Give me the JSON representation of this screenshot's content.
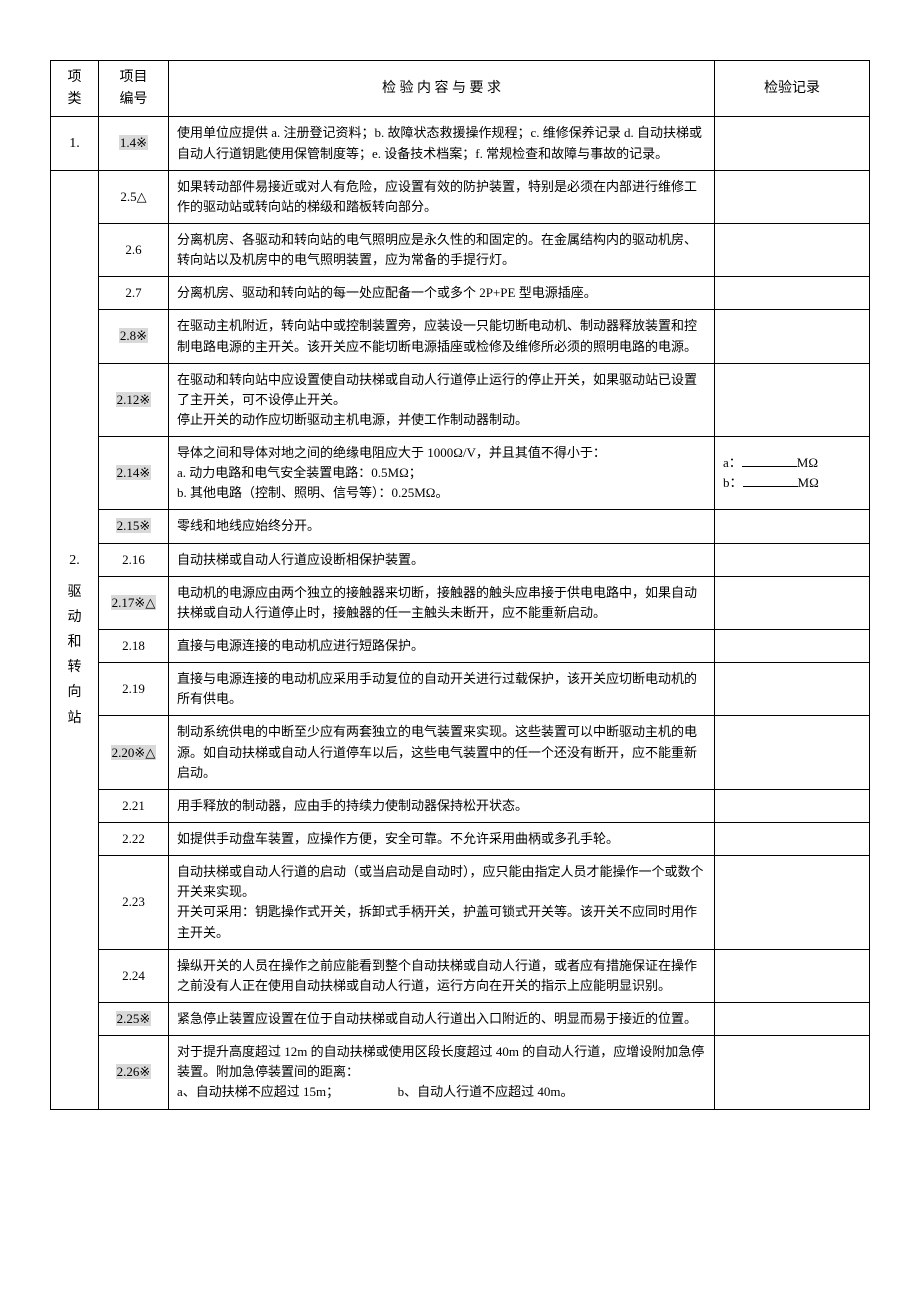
{
  "headers": {
    "category": "项\n类",
    "number": "项目\n编号",
    "content": "检 验 内 容 与 要 求",
    "record": "检验记录"
  },
  "categories": {
    "cat1": "1.",
    "cat2_num": "2.",
    "cat2_chars": [
      "驱",
      "动",
      "和",
      "转",
      "向",
      "站"
    ]
  },
  "rows": [
    {
      "num": "1.4※",
      "hl": true,
      "content": "使用单位应提供 a. 注册登记资料；b. 故障状态救援操作规程；c. 维修保养记录 d. 自动扶梯或自动人行道钥匙使用保管制度等；e. 设备技术档案；f. 常规检查和故障与事故的记录。",
      "record": ""
    },
    {
      "num": "2.5△",
      "hl": false,
      "content": "如果转动部件易接近或对人有危险，应设置有效的防护装置，特别是必须在内部进行维修工作的驱动站或转向站的梯级和踏板转向部分。",
      "record": ""
    },
    {
      "num": "2.6",
      "hl": false,
      "content": "分离机房、各驱动和转向站的电气照明应是永久性的和固定的。在金属结构内的驱动机房、转向站以及机房中的电气照明装置，应为常备的手提行灯。",
      "record": ""
    },
    {
      "num": "2.7",
      "hl": false,
      "content": "分离机房、驱动和转向站的每一处应配备一个或多个 2P+PE 型电源插座。",
      "record": ""
    },
    {
      "num": "2.8※",
      "hl": true,
      "content": "在驱动主机附近，转向站中或控制装置旁，应装设一只能切断电动机、制动器释放装置和控制电路电源的主开关。该开关应不能切断电源插座或检修及维修所必须的照明电路的电源。",
      "record": ""
    },
    {
      "num": "2.12※",
      "hl": true,
      "content": "在驱动和转向站中应设置使自动扶梯或自动人行道停止运行的停止开关，如果驱动站已设置了主开关，可不设停止开关。\n停止开关的动作应切断驱动主机电源，并使工作制动器制动。",
      "record": ""
    },
    {
      "num": "2.14※",
      "hl": true,
      "content": "导体之间和导体对地之间的绝缘电阻应大于 1000Ω/V，并且其值不得小于：\na. 动力电路和电气安全装置电路：0.5MΩ；\nb. 其他电路（控制、照明、信号等）：0.25MΩ。",
      "record_type": "resistance"
    },
    {
      "num": "2.15※",
      "hl": true,
      "content": "零线和地线应始终分开。",
      "record": ""
    },
    {
      "num": "2.16",
      "hl": false,
      "content": "自动扶梯或自动人行道应设断相保护装置。",
      "record": ""
    },
    {
      "num": "2.17※△",
      "hl": true,
      "content": "电动机的电源应由两个独立的接触器来切断，接触器的触头应串接于供电电路中，如果自动扶梯或自动人行道停止时，接触器的任一主触头未断开，应不能重新启动。",
      "record": ""
    },
    {
      "num": "2.18",
      "hl": false,
      "content": "直接与电源连接的电动机应进行短路保护。",
      "record": ""
    },
    {
      "num": "2.19",
      "hl": false,
      "content": "直接与电源连接的电动机应采用手动复位的自动开关进行过载保护，该开关应切断电动机的所有供电。",
      "record": ""
    },
    {
      "num": "2.20※△",
      "hl": true,
      "content": "制动系统供电的中断至少应有两套独立的电气装置来实现。这些装置可以中断驱动主机的电源。如自动扶梯或自动人行道停车以后，这些电气装置中的任一个还没有断开，应不能重新启动。",
      "record": ""
    },
    {
      "num": "2.21",
      "hl": false,
      "content": "用手释放的制动器，应由手的持续力使制动器保持松开状态。",
      "record": ""
    },
    {
      "num": "2.22",
      "hl": false,
      "content": "如提供手动盘车装置，应操作方便，安全可靠。不允许采用曲柄或多孔手轮。",
      "record": ""
    },
    {
      "num": "2.23",
      "hl": false,
      "content": "自动扶梯或自动人行道的启动（或当启动是自动时），应只能由指定人员才能操作一个或数个开关来实现。\n开关可采用：钥匙操作式开关，拆卸式手柄开关，护盖可锁式开关等。该开关不应同时用作主开关。",
      "record": ""
    },
    {
      "num": "2.24",
      "hl": false,
      "content": "操纵开关的人员在操作之前应能看到整个自动扶梯或自动人行道，或者应有措施保证在操作之前没有人正在使用自动扶梯或自动人行道，运行方向在开关的指示上应能明显识别。",
      "record": ""
    },
    {
      "num": "2.25※",
      "hl": true,
      "content": "紧急停止装置应设置在位于自动扶梯或自动人行道出入口附近的、明显而易于接近的位置。",
      "record": ""
    },
    {
      "num": "2.26※",
      "hl": true,
      "content": "对于提升高度超过 12m 的自动扶梯或使用区段长度超过 40m 的自动人行道，应增设附加急停装置。附加急停装置间的距离：\na、自动扶梯不应超过 15m；　　　　　b、自动人行道不应超过 40m。",
      "record": ""
    }
  ],
  "resistance_record": {
    "a_label": "a：",
    "b_label": "b：",
    "unit": "MΩ"
  }
}
